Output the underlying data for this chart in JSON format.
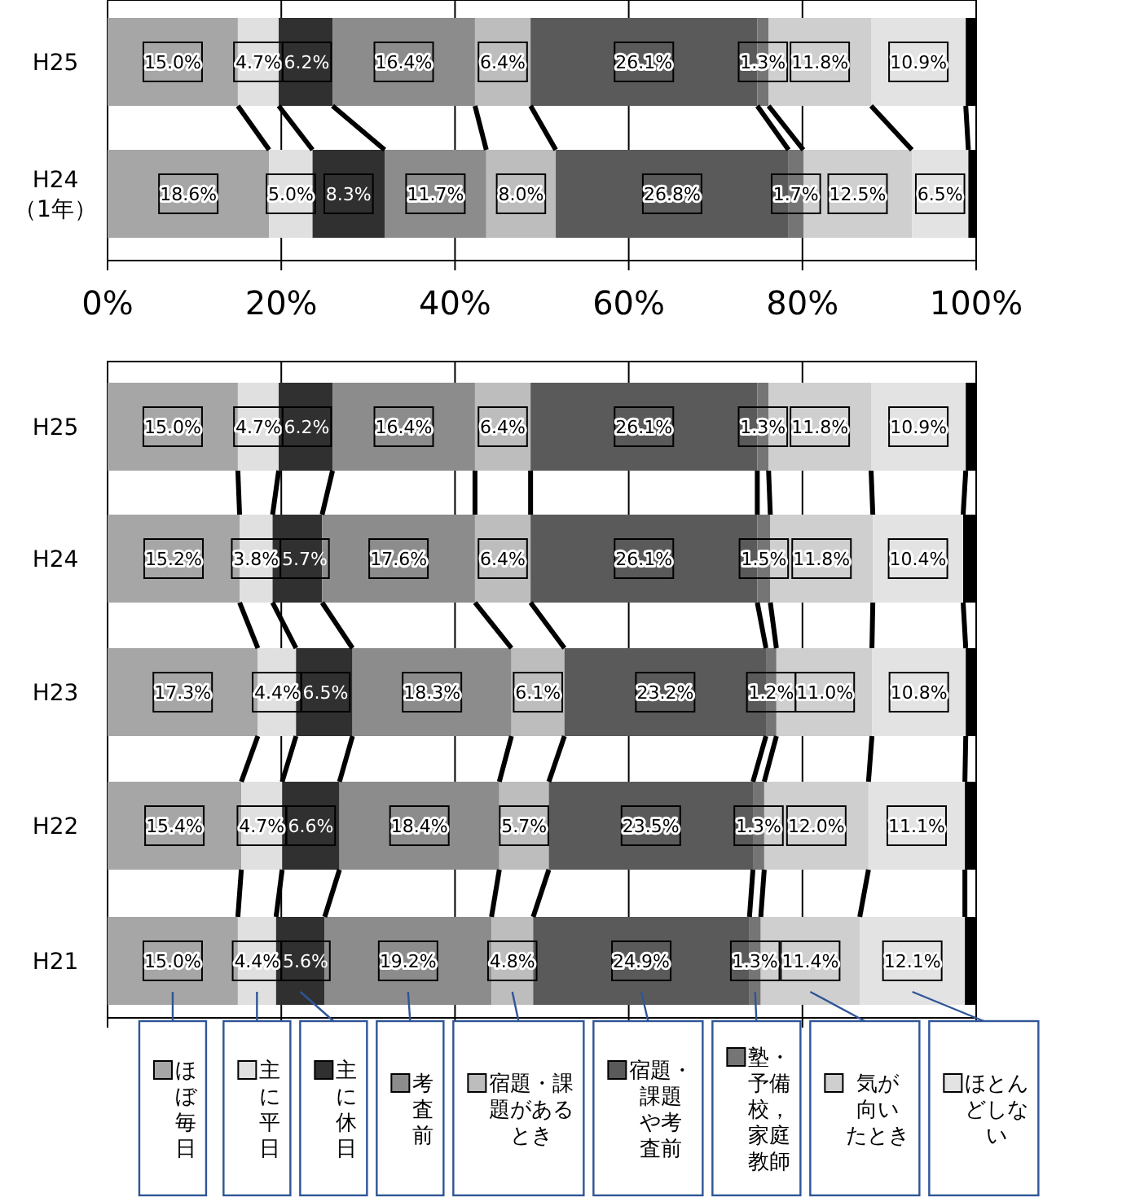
{
  "chart_data": [
    {
      "type": "bar",
      "orientation": "horizontal",
      "stacked": true,
      "categories": [
        "H25",
        "H24\n（1年）"
      ],
      "xlim": [
        0,
        100
      ],
      "xticks": [
        {
          "value": 0,
          "label": "0%"
        },
        {
          "value": 20,
          "label": "20%"
        },
        {
          "value": 40,
          "label": "40%"
        },
        {
          "value": 60,
          "label": "60%"
        },
        {
          "value": 80,
          "label": "80%"
        },
        {
          "value": 100,
          "label": "100%"
        }
      ],
      "grid": "x",
      "series": [
        {
          "color": "#a6a6a6",
          "values": [
            15.0,
            18.6
          ],
          "value_labels": [
            "15.0%",
            "18.6%"
          ]
        },
        {
          "color": "#e0e0e0",
          "values": [
            4.7,
            5.0
          ],
          "value_labels": [
            "4.7%",
            "5.0%"
          ]
        },
        {
          "color": "#303030",
          "values": [
            6.2,
            8.3
          ],
          "value_labels": [
            "6.2%",
            "8.3%"
          ]
        },
        {
          "color": "#8c8c8c",
          "values": [
            16.4,
            11.7
          ],
          "value_labels": [
            "16.4%",
            "11.7%"
          ]
        },
        {
          "color": "#bdbdbd",
          "values": [
            6.4,
            8.0
          ],
          "value_labels": [
            "6.4%",
            "8.0%"
          ]
        },
        {
          "color": "#5a5a5a",
          "values": [
            26.1,
            26.8
          ],
          "value_labels": [
            "26.1%",
            "26.8%"
          ]
        },
        {
          "color": "#757575",
          "values": [
            1.3,
            1.7
          ],
          "value_labels": [
            "1.3%",
            "1.7%"
          ]
        },
        {
          "color": "#cfcfcf",
          "values": [
            11.8,
            12.5
          ],
          "value_labels": [
            "11.8%",
            "12.5%"
          ]
        },
        {
          "color": "#e3e3e3",
          "values": [
            10.9,
            6.5
          ],
          "value_labels": [
            "10.9%",
            "6.5%"
          ]
        },
        {
          "color": "#000000",
          "values": [
            1.2,
            0.9
          ],
          "value_labels": [
            null,
            null
          ]
        }
      ]
    },
    {
      "type": "bar",
      "orientation": "horizontal",
      "stacked": true,
      "categories": [
        "H25",
        "H24",
        "H23",
        "H22",
        "H21"
      ],
      "xlim": [
        0,
        100
      ],
      "xticks": [
        {
          "value": 0,
          "label": null
        },
        {
          "value": 20,
          "label": null
        },
        {
          "value": 40,
          "label": null
        },
        {
          "value": 60,
          "label": null
        },
        {
          "value": 80,
          "label": null
        },
        {
          "value": 100,
          "label": null
        }
      ],
      "tick_labels": "y",
      "grid": "x",
      "legend": "bottom",
      "series": [
        {
          "name": "ほぼ毎日",
          "color": "#a6a6a6",
          "values": [
            15.0,
            15.2,
            17.3,
            15.4,
            15.0
          ],
          "value_labels": [
            "15.0%",
            "15.2%",
            "17.3%",
            "15.4%",
            "15.0%"
          ]
        },
        {
          "name": "主に平日",
          "color": "#e0e0e0",
          "values": [
            4.7,
            3.8,
            4.4,
            4.7,
            4.4
          ],
          "value_labels": [
            "4.7%",
            "3.8%",
            "4.4%",
            "4.7%",
            "4.4%"
          ]
        },
        {
          "name": "主に休日",
          "color": "#303030",
          "values": [
            6.2,
            5.7,
            6.5,
            6.6,
            5.6
          ],
          "value_labels": [
            "6.2%",
            "5.7%",
            "6.5%",
            "6.6%",
            "5.6%"
          ]
        },
        {
          "name": "考査前",
          "color": "#8c8c8c",
          "values": [
            16.4,
            17.6,
            18.3,
            18.4,
            19.2
          ],
          "value_labels": [
            "16.4%",
            "17.6%",
            "18.3%",
            "18.4%",
            "19.2%"
          ]
        },
        {
          "name": "宿題・課題があるとき",
          "color": "#bdbdbd",
          "values": [
            6.4,
            6.4,
            6.1,
            5.7,
            4.8
          ],
          "value_labels": [
            "6.4%",
            "6.4%",
            "6.1%",
            "5.7%",
            "4.8%"
          ]
        },
        {
          "name": "宿題・課題や考査前",
          "color": "#5a5a5a",
          "values": [
            26.1,
            26.1,
            23.2,
            23.5,
            24.9
          ],
          "value_labels": [
            "26.1%",
            "26.1%",
            "23.2%",
            "23.5%",
            "24.9%"
          ]
        },
        {
          "name": "塾・予備校，家庭教師",
          "color": "#757575",
          "values": [
            1.3,
            1.5,
            1.2,
            1.3,
            1.3
          ],
          "value_labels": [
            "1.3%",
            "1.5%",
            "1.2%",
            "1.3%",
            "1.3%"
          ]
        },
        {
          "name": "気が向いたとき",
          "color": "#cfcfcf",
          "values": [
            11.8,
            11.8,
            11.0,
            12.0,
            11.4
          ],
          "value_labels": [
            "11.8%",
            "11.8%",
            "11.0%",
            "12.0%",
            "11.4%"
          ]
        },
        {
          "name": "ほとんどしない",
          "color": "#e3e3e3",
          "values": [
            10.9,
            10.4,
            10.8,
            11.1,
            12.1
          ],
          "value_labels": [
            "10.9%",
            "10.4%",
            "10.8%",
            "11.1%",
            "12.1%"
          ]
        },
        {
          "color": "#000000",
          "values": [
            1.2,
            1.5,
            1.2,
            1.3,
            1.3
          ],
          "value_labels": [
            null,
            null,
            null,
            null,
            null
          ]
        }
      ]
    }
  ]
}
